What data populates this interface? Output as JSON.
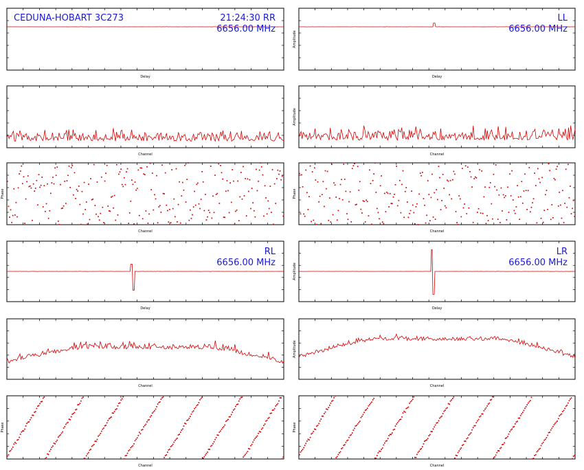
{
  "header": {
    "baseline_source": "CEDUNA-HOBART 3C273",
    "time": "21:24:30"
  },
  "colors": {
    "trace": "#d40000",
    "label": "#1a1ad6",
    "axis": "#000000"
  },
  "quadrants": [
    {
      "pol": "RR",
      "freq": "6656.00 MHz"
    },
    {
      "pol": "LL",
      "freq": "6656.00 MHz"
    },
    {
      "pol": "RL",
      "freq": "6656.00 MHz"
    },
    {
      "pol": "LR",
      "freq": "6656.00 MHz"
    }
  ],
  "chart_data": [
    {
      "id": "rr-delay",
      "type": "line",
      "xlabel": "Delay",
      "ylabel": "",
      "xlim": [
        -200,
        200
      ],
      "ylim": [
        0,
        5
      ],
      "baseline": 3.5,
      "noise": 0.04,
      "spikes": []
    },
    {
      "id": "ll-delay",
      "type": "line",
      "xlabel": "Delay",
      "ylabel": "Amplitude",
      "xlim": [
        -200,
        200
      ],
      "ylim": [
        0,
        5
      ],
      "baseline": 3.5,
      "noise": 0.04,
      "spikes": [
        {
          "x": -4,
          "y": 0.3
        }
      ]
    },
    {
      "id": "rr-channel",
      "type": "line",
      "xlabel": "Channel",
      "ylabel": "",
      "xlim": [
        0,
        256
      ],
      "ylim": [
        0,
        5
      ],
      "points": 256,
      "profile": "flat",
      "level": 0.8,
      "noise": 0.9
    },
    {
      "id": "ll-channel",
      "type": "line",
      "xlabel": "Channel",
      "ylabel": "Amplitude",
      "xlim": [
        0,
        256
      ],
      "ylim": [
        0,
        5
      ],
      "points": 256,
      "profile": "flat",
      "level": 0.9,
      "noise": 1.0
    },
    {
      "id": "rr-phase",
      "type": "scatter",
      "xlabel": "Channel",
      "ylabel": "Phase",
      "xlim": [
        0,
        256
      ],
      "ylim": [
        -180,
        180
      ],
      "points": 256,
      "pattern": "random"
    },
    {
      "id": "ll-phase",
      "type": "scatter",
      "xlabel": "Channel",
      "ylabel": "Phase",
      "xlim": [
        0,
        256
      ],
      "ylim": [
        -180,
        180
      ],
      "points": 256,
      "pattern": "random"
    },
    {
      "id": "rl-delay",
      "type": "line",
      "xlabel": "Delay",
      "ylabel": "",
      "xlim": [
        -200,
        200
      ],
      "ylim": [
        -5,
        5
      ],
      "baseline": 0,
      "noise": 0.05,
      "spikes": [
        {
          "x": -20,
          "y": 1.2
        },
        {
          "x": -17,
          "y": -3.1
        }
      ]
    },
    {
      "id": "lr-delay",
      "type": "line",
      "xlabel": "Delay",
      "ylabel": "Amplitude",
      "xlim": [
        -200,
        200
      ],
      "ylim": [
        -5,
        5
      ],
      "baseline": 0,
      "noise": 0.05,
      "spikes": [
        {
          "x": -7,
          "y": 3.6
        },
        {
          "x": -5,
          "y": -3.8
        }
      ]
    },
    {
      "id": "rl-channel",
      "type": "line",
      "xlabel": "Channel",
      "ylabel": "",
      "xlim": [
        0,
        256
      ],
      "ylim": [
        0,
        6
      ],
      "points": 256,
      "profile": "hump",
      "level": 3.2,
      "noise": 0.7
    },
    {
      "id": "lr-channel",
      "type": "line",
      "xlabel": "Channel",
      "ylabel": "Amplitude",
      "xlim": [
        0,
        256
      ],
      "ylim": [
        0,
        6
      ],
      "points": 256,
      "profile": "hump",
      "level": 4.0,
      "noise": 0.5
    },
    {
      "id": "rl-phase",
      "type": "scatter",
      "xlabel": "Channel",
      "ylabel": "Phase",
      "xlim": [
        0,
        256
      ],
      "ylim": [
        -180,
        180
      ],
      "points": 256,
      "pattern": "wrap",
      "wraps": 7,
      "phase0": -160
    },
    {
      "id": "lr-phase",
      "type": "scatter",
      "xlabel": "Channel",
      "ylabel": "Phase",
      "xlim": [
        0,
        256
      ],
      "ylim": [
        -180,
        180
      ],
      "points": 256,
      "pattern": "wrap",
      "wraps": 7,
      "phase0": -150
    }
  ]
}
